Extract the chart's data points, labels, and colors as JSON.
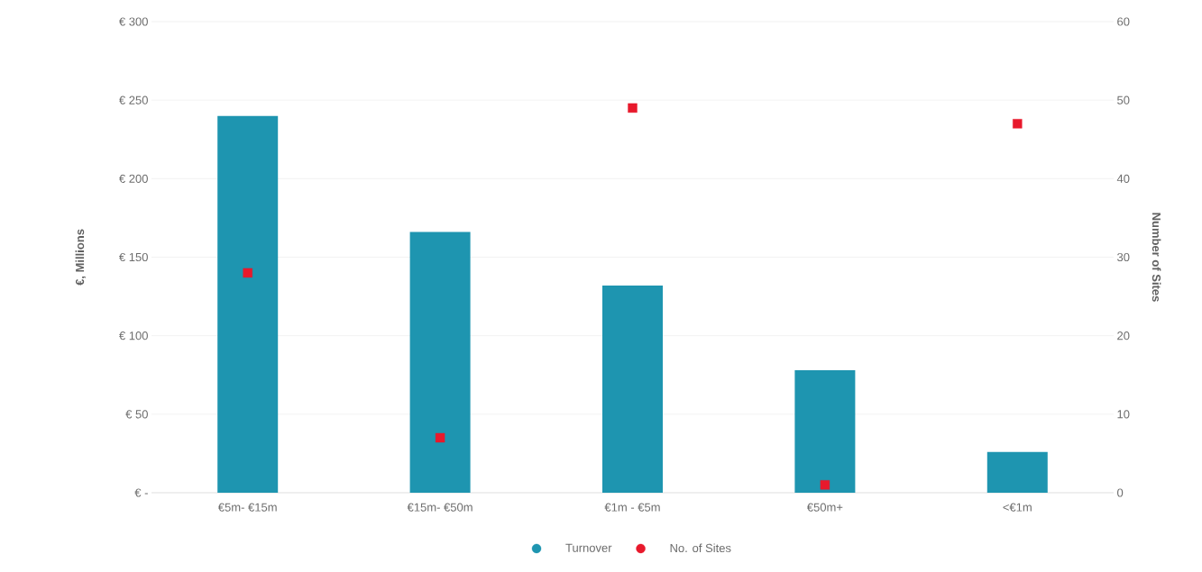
{
  "chart_data": {
    "type": "bar",
    "categories": [
      "€5m- €15m",
      "€15m- €50m",
      "€1m - €5m",
      "€50m+",
      "<€1m"
    ],
    "series": [
      {
        "name": "Turnover",
        "color": "#1e95b0",
        "values": [
          240,
          166,
          132,
          78,
          26
        ]
      },
      {
        "name": "No. of Sites",
        "type": "scatter",
        "axis": "y2",
        "color": "#e8192c",
        "marker": "square",
        "values": [
          28,
          7,
          49,
          1,
          47
        ]
      }
    ],
    "ylabel": "€, Millions",
    "y2label": "Number of Sites",
    "ylim": [
      0,
      300
    ],
    "yticks": [
      {
        "value": 0,
        "label": "€ -"
      },
      {
        "value": 50,
        "label": "€ 50"
      },
      {
        "value": 100,
        "label": "€ 100"
      },
      {
        "value": 150,
        "label": "€ 150"
      },
      {
        "value": 200,
        "label": "€ 200"
      },
      {
        "value": 250,
        "label": "€ 250"
      },
      {
        "value": 300,
        "label": "€ 300"
      }
    ],
    "y2lim": [
      0,
      60
    ],
    "y2ticks": [
      0,
      10,
      20,
      30,
      40,
      50,
      60
    ],
    "grid": "y",
    "legend": "bottom"
  }
}
